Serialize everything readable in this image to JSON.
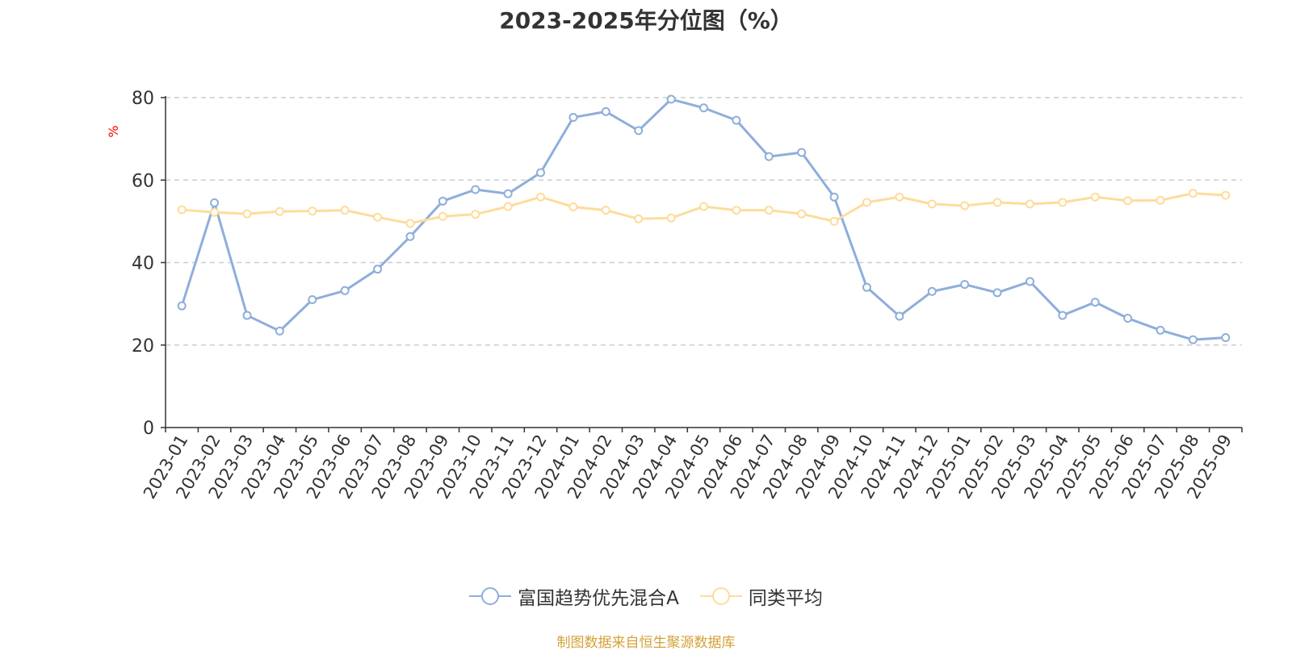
{
  "chart_data": {
    "type": "line",
    "title": "2023-2025年分位图（%）",
    "ylabel": "%",
    "ylim": [
      0,
      80
    ],
    "yticks": [
      0,
      20,
      40,
      60,
      80
    ],
    "grid": "horizontal dashed",
    "legend_position": "bottom-center",
    "categories": [
      "2023-01",
      "2023-02",
      "2023-03",
      "2023-04",
      "2023-05",
      "2023-06",
      "2023-07",
      "2023-08",
      "2023-09",
      "2023-10",
      "2023-11",
      "2023-12",
      "2024-01",
      "2024-02",
      "2024-03",
      "2024-04",
      "2024-05",
      "2024-06",
      "2024-07",
      "2024-08",
      "2024-09",
      "2024-10",
      "2024-11",
      "2024-12",
      "2025-01",
      "2025-02",
      "2025-03",
      "2025-04",
      "2025-05",
      "2025-06",
      "2025-07",
      "2025-08",
      "2025-09"
    ],
    "series": [
      {
        "name": "富国趋势优先混合A",
        "color": "#8eaedb",
        "values": [
          29.5,
          54.5,
          27.2,
          23.4,
          31.0,
          33.2,
          38.4,
          46.3,
          54.9,
          57.7,
          56.7,
          61.8,
          75.2,
          76.6,
          72.0,
          79.6,
          77.5,
          74.5,
          65.7,
          66.7,
          55.9,
          34.0,
          27.0,
          33.0,
          34.7,
          32.7,
          35.4,
          27.2,
          30.4,
          26.5,
          23.6,
          21.3,
          21.8
        ]
      },
      {
        "name": "同类平均",
        "color": "#fddc9b",
        "values": [
          52.8,
          52.2,
          51.8,
          52.4,
          52.5,
          52.7,
          51.0,
          49.5,
          51.2,
          51.7,
          53.6,
          55.9,
          53.5,
          52.7,
          50.6,
          50.8,
          53.6,
          52.7,
          52.7,
          51.8,
          50.0,
          54.6,
          55.9,
          54.2,
          53.8,
          54.6,
          54.2,
          54.6,
          55.9,
          55.0,
          55.1,
          56.8,
          56.3
        ]
      }
    ]
  },
  "source_note": "制图数据来自恒生聚源数据库"
}
